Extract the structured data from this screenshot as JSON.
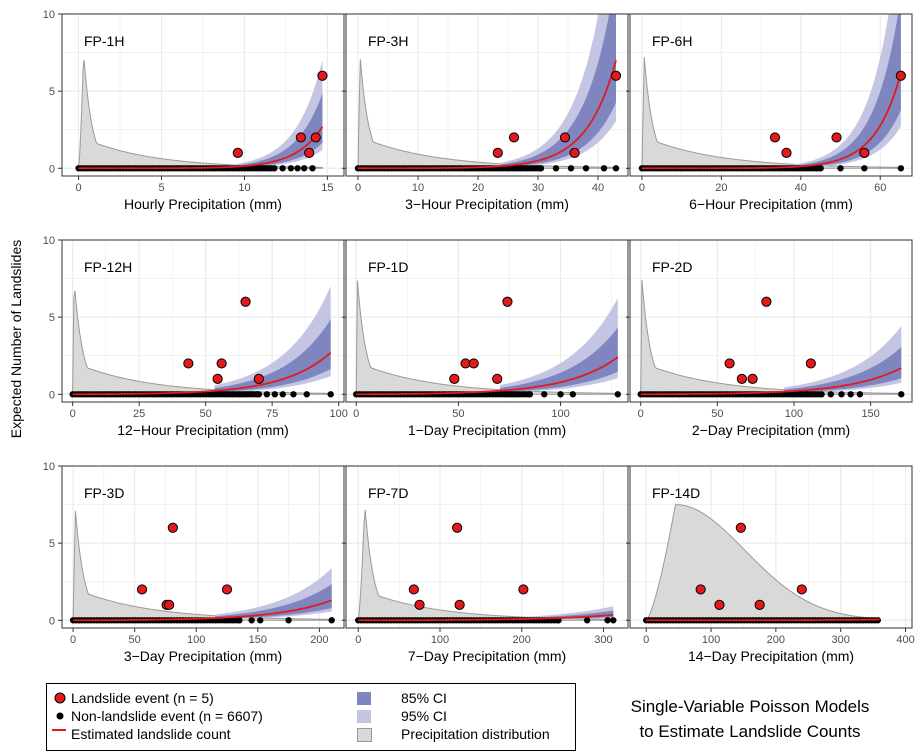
{
  "y_axis_label": "Expected Number of Landslides",
  "colors": {
    "landslide_event": "#e31a1c",
    "non_landslide_event": "#000000",
    "estimated_line": "#e31a1c",
    "ci85": "#7f86bf",
    "ci95": "#c3c5e3",
    "precip_dist": "#d9d9d9"
  },
  "legend": {
    "landslide_event": "Landslide event (n = 5)",
    "non_landslide_event": "Non-landslide event (n = 6607)",
    "estimated_count": "Estimated landslide count",
    "ci85": "85% CI",
    "ci95": "95% CI",
    "precip_dist": "Precipitation distribution"
  },
  "caption": {
    "line1": "Single-Variable Poisson Models",
    "line2": "to Estimate Landslide Counts"
  },
  "chart_data": [
    {
      "type": "scatter",
      "title": "FP-1H",
      "xlabel": "Hourly Precipitation (mm)",
      "xlim": [
        -1,
        16
      ],
      "ylim": [
        -0.5,
        10
      ],
      "xticks": [
        0,
        5,
        10,
        15
      ],
      "yticks": [
        0,
        5,
        10
      ],
      "landslide_events": [
        [
          9.6,
          1
        ],
        [
          13.4,
          2
        ],
        [
          13.9,
          1
        ],
        [
          14.3,
          2
        ],
        [
          14.7,
          6
        ]
      ],
      "nonlandslide_max": 14.1,
      "nonlandslide_sparse": [
        11.8,
        12.3,
        12.8,
        13.2,
        13.6,
        14.1
      ],
      "fit_a": 0.0003,
      "fit_xmax": 14.7,
      "dist_peak": 0.3
    },
    {
      "type": "scatter",
      "title": "FP-3H",
      "xlabel": "3−Hour Precipitation (mm)",
      "xlim": [
        -2,
        45
      ],
      "ylim": [
        -0.5,
        10
      ],
      "xticks": [
        0,
        10,
        20,
        30,
        40
      ],
      "yticks": [
        0,
        5,
        10
      ],
      "landslide_events": [
        [
          23.3,
          1
        ],
        [
          26.0,
          2
        ],
        [
          34.5,
          2
        ],
        [
          36.1,
          1
        ],
        [
          43.0,
          6
        ]
      ],
      "nonlandslide_max": 43.0,
      "nonlandslide_sparse": [
        30.5,
        33.0,
        35.5,
        38.0,
        41.0,
        43.0
      ],
      "fit_a": 0.0011,
      "fit_xmax": 43.0,
      "dist_peak": 0.3
    },
    {
      "type": "scatter",
      "title": "FP-6H",
      "xlabel": "6−Hour Precipitation (mm)",
      "xlim": [
        -3,
        68
      ],
      "ylim": [
        -0.5,
        10
      ],
      "xticks": [
        0,
        20,
        40,
        60
      ],
      "yticks": [
        0,
        5,
        10
      ],
      "landslide_events": [
        [
          33.5,
          2
        ],
        [
          36.4,
          1
        ],
        [
          49.0,
          2
        ],
        [
          56.0,
          1
        ],
        [
          65.2,
          6
        ]
      ],
      "nonlandslide_max": 65.2,
      "nonlandslide_sparse": [
        45.0,
        50.0,
        56.0,
        65.2
      ],
      "fit_a": 0.00025,
      "fit_xmax": 65.2,
      "dist_peak": 0.5
    },
    {
      "type": "scatter",
      "title": "FP-12H",
      "xlabel": "12−Hour Precipitation (mm)",
      "xlim": [
        -4,
        102
      ],
      "ylim": [
        -0.5,
        10
      ],
      "xticks": [
        0,
        25,
        50,
        75,
        100
      ],
      "yticks": [
        0,
        5,
        10
      ],
      "landslide_events": [
        [
          43.5,
          2
        ],
        [
          54.5,
          1
        ],
        [
          56.0,
          2
        ],
        [
          65.0,
          6
        ],
        [
          70.0,
          1
        ]
      ],
      "nonlandslide_max": 97.0,
      "nonlandslide_sparse": [
        70.0,
        73.0,
        76.0,
        79.0,
        83.0,
        88.0,
        97.0
      ],
      "fit_a": 0.012,
      "fit_xmax": 97.0,
      "dist_peak": 0.5
    },
    {
      "type": "scatter",
      "title": "FP-1D",
      "xlabel": "1−Day Precipitation (mm)",
      "xlim": [
        -5,
        133
      ],
      "ylim": [
        -0.5,
        10
      ],
      "xticks": [
        0,
        50,
        100
      ],
      "yticks": [
        0,
        5,
        10
      ],
      "landslide_events": [
        [
          48.0,
          1
        ],
        [
          53.5,
          2
        ],
        [
          57.5,
          2
        ],
        [
          69.0,
          1
        ],
        [
          74.0,
          6
        ]
      ],
      "nonlandslide_max": 128.0,
      "nonlandslide_sparse": [
        85.0,
        92.0,
        100.0,
        106.0,
        128.0
      ],
      "fit_a": 0.015,
      "fit_xmax": 128.0,
      "dist_peak": 0.5
    },
    {
      "type": "scatter",
      "title": "FP-2D",
      "xlabel": "2−Day Precipitation (mm)",
      "xlim": [
        -7,
        177
      ],
      "ylim": [
        -0.5,
        10
      ],
      "xticks": [
        0,
        50,
        100,
        150
      ],
      "yticks": [
        0,
        5,
        10
      ],
      "landslide_events": [
        [
          58.0,
          2
        ],
        [
          66.0,
          1
        ],
        [
          73.0,
          1
        ],
        [
          82.0,
          6
        ],
        [
          111.0,
          2
        ]
      ],
      "nonlandslide_max": 170.0,
      "nonlandslide_sparse": [
        118.0,
        124.0,
        131.0,
        137.0,
        143.0,
        170.0
      ],
      "fit_a": 0.012,
      "fit_xmax": 170.0,
      "dist_peak": 0.7
    },
    {
      "type": "scatter",
      "title": "FP-3D",
      "xlabel": "3−Day Precipitation (mm)",
      "xlim": [
        -9,
        220
      ],
      "ylim": [
        -0.5,
        10
      ],
      "xticks": [
        0,
        50,
        100,
        150,
        200
      ],
      "yticks": [
        0,
        5,
        10
      ],
      "landslide_events": [
        [
          56.0,
          2
        ],
        [
          76.0,
          1
        ],
        [
          78.0,
          1
        ],
        [
          81.0,
          6
        ],
        [
          125.0,
          2
        ]
      ],
      "nonlandslide_max": 210.0,
      "nonlandslide_sparse": [
        135.0,
        145.0,
        152.0,
        175.0,
        210.0
      ],
      "fit_a": 0.0115,
      "fit_xmax": 210.0,
      "dist_peak": 1.5
    },
    {
      "type": "scatter",
      "title": "FP-7D",
      "xlabel": "7−Day Precipitation (mm)",
      "xlim": [
        -15,
        330
      ],
      "ylim": [
        -0.5,
        10
      ],
      "xticks": [
        0,
        100,
        200,
        300
      ],
      "yticks": [
        0,
        5,
        10
      ],
      "landslide_events": [
        [
          68.0,
          2
        ],
        [
          75.0,
          1
        ],
        [
          121.0,
          6
        ],
        [
          124.0,
          1
        ],
        [
          202.0,
          2
        ]
      ],
      "nonlandslide_max": 312.0,
      "nonlandslide_sparse": [
        245.0,
        280.0,
        305.0,
        312.0
      ],
      "fit_a": 0.0075,
      "fit_xmax": 312.0,
      "dist_peak": 8.0
    },
    {
      "type": "scatter",
      "title": "FP-14D",
      "xlabel": "14−Day Precipitation (mm)",
      "xlim": [
        -25,
        410
      ],
      "ylim": [
        -0.5,
        10
      ],
      "xticks": [
        0,
        100,
        200,
        300,
        400
      ],
      "yticks": [
        0,
        5,
        10
      ],
      "landslide_events": [
        [
          84.0,
          2
        ],
        [
          113.0,
          1
        ],
        [
          146.0,
          6
        ],
        [
          175.0,
          1
        ],
        [
          240.0,
          2
        ]
      ],
      "nonlandslide_max": 360.0,
      "nonlandslide_sparse": [],
      "fit_a": 0.0012,
      "fit_xmax": 360.0,
      "dist_peak": 45.0
    }
  ]
}
